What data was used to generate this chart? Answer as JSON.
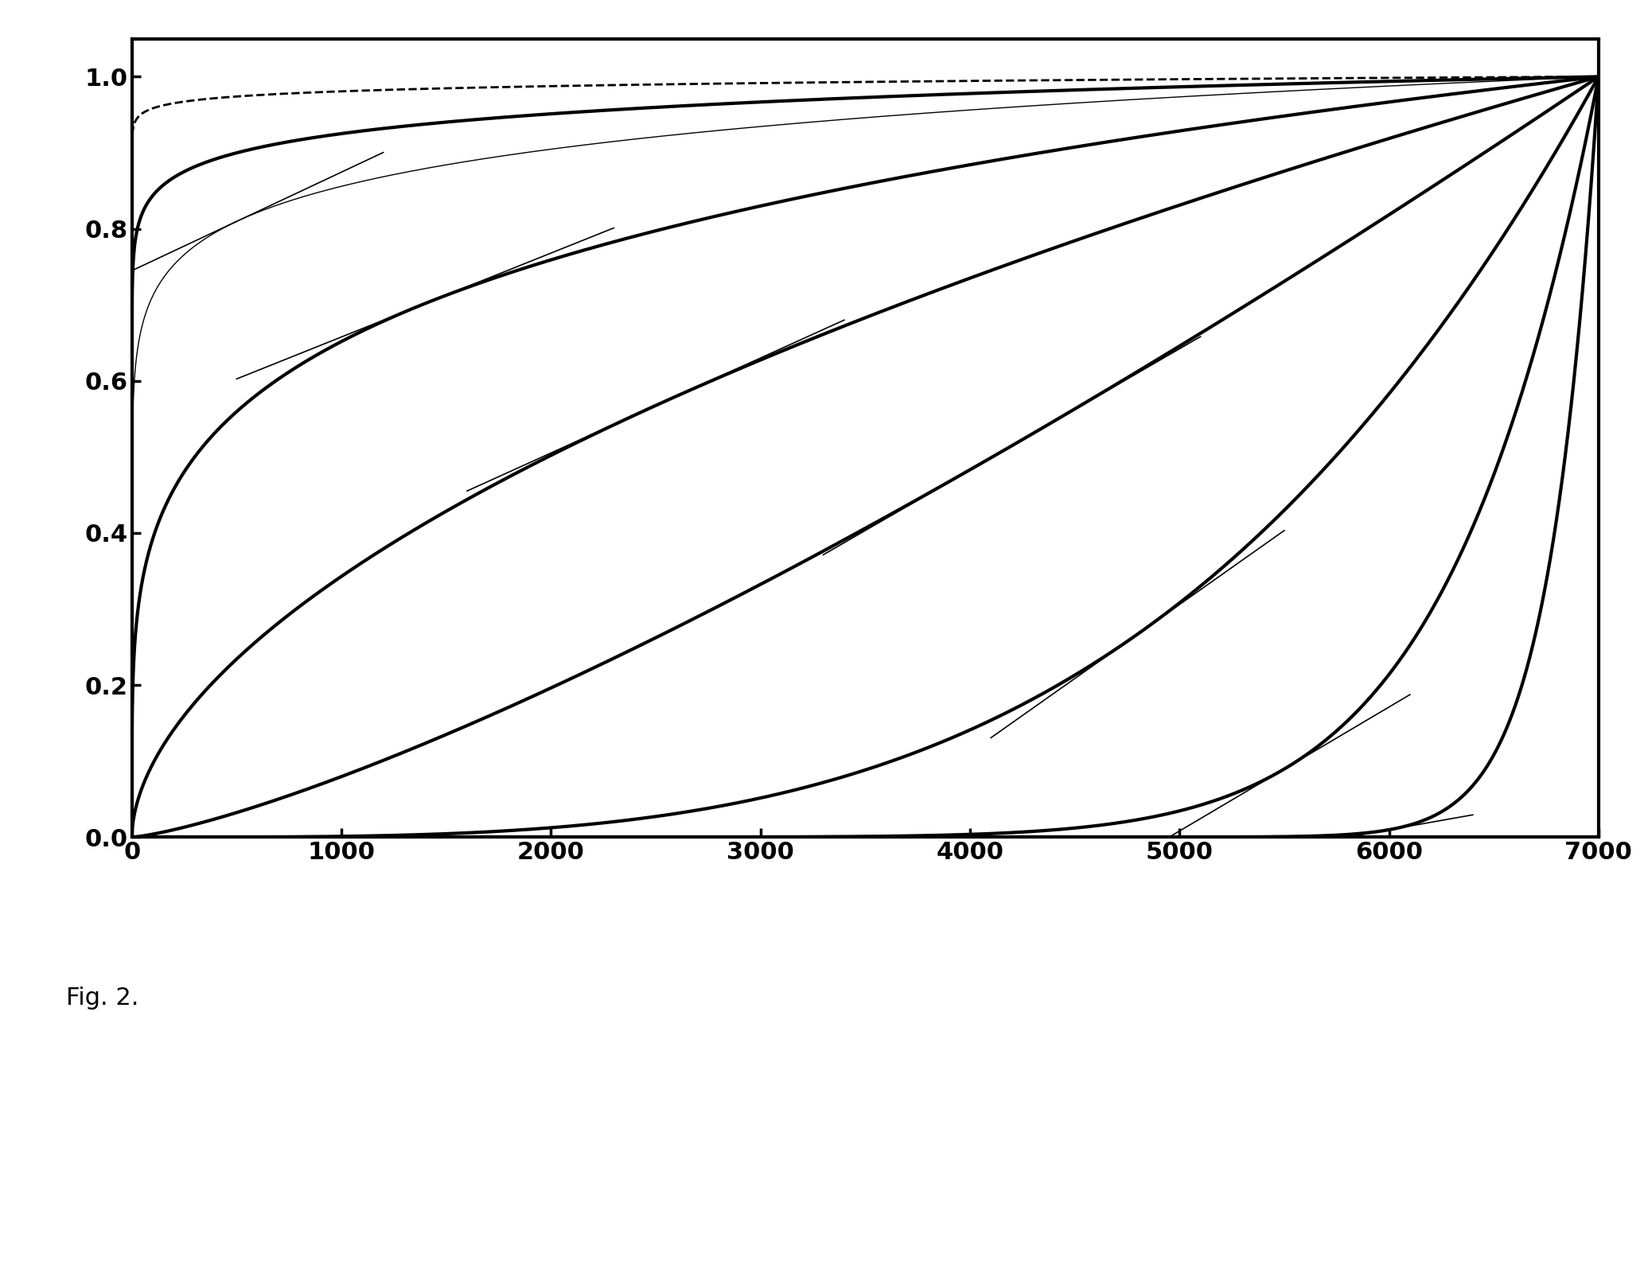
{
  "xmax": 7000,
  "ymin": 0.0,
  "ymax": 1.05,
  "xlim": [
    0,
    7000
  ],
  "ylim": [
    0.0,
    1.05
  ],
  "xticks": [
    0,
    1000,
    2000,
    3000,
    4000,
    5000,
    6000,
    7000
  ],
  "yticks": [
    0.0,
    0.2,
    0.4,
    0.6,
    0.8,
    1.0
  ],
  "background_color": "#ffffff",
  "curves": [
    {
      "type": "power",
      "alpha": 0.01,
      "lw": 2.0,
      "ls": "--",
      "color": "#000000"
    },
    {
      "type": "power",
      "alpha": 0.04,
      "lw": 3.0,
      "ls": "-",
      "color": "#000000"
    },
    {
      "type": "power",
      "alpha": 0.08,
      "lw": 1.0,
      "ls": "-",
      "color": "#000000"
    },
    {
      "type": "power",
      "alpha": 0.22,
      "lw": 3.0,
      "ls": "-",
      "color": "#000000"
    },
    {
      "type": "power",
      "alpha": 0.55,
      "lw": 3.0,
      "ls": "-",
      "color": "#000000"
    },
    {
      "type": "power",
      "alpha": 1.3,
      "lw": 3.0,
      "ls": "-",
      "color": "#000000"
    },
    {
      "type": "power",
      "alpha": 3.5,
      "lw": 3.0,
      "ls": "-",
      "color": "#000000"
    },
    {
      "type": "power",
      "alpha": 10.0,
      "lw": 3.0,
      "ls": "-",
      "color": "#000000"
    },
    {
      "type": "power",
      "alpha": 30.0,
      "lw": 3.0,
      "ls": "-",
      "color": "#000000"
    }
  ],
  "tangent_lines": [
    {
      "alpha": 0.08,
      "x_center": 500,
      "half_length_x": 700
    },
    {
      "alpha": 0.22,
      "x_center": 1400,
      "half_length_x": 900
    },
    {
      "alpha": 0.55,
      "x_center": 2500,
      "half_length_x": 900
    },
    {
      "alpha": 1.3,
      "x_center": 4200,
      "half_length_x": 900
    },
    {
      "alpha": 3.5,
      "x_center": 4800,
      "half_length_x": 700
    },
    {
      "alpha": 10.0,
      "x_center": 5500,
      "half_length_x": 600
    },
    {
      "alpha": 30.0,
      "x_center": 6000,
      "half_length_x": 400
    }
  ],
  "figsize": [
    20.71,
    16.19
  ],
  "dpi": 100,
  "spine_lw": 3.0,
  "label_fontsize": 22,
  "fig2_text": "Fig. 2.",
  "fig2_fontsize": 22
}
